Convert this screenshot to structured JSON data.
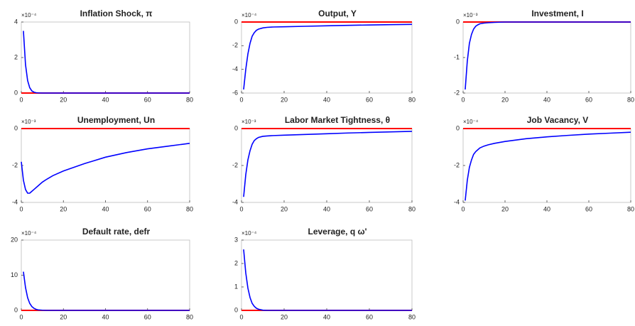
{
  "chart_data": [
    {
      "type": "line",
      "title": "Inflation Shock, π",
      "exponent_label": "×10⁻⁴",
      "x": [
        1,
        2,
        3,
        4,
        5,
        6,
        7,
        8,
        10,
        12,
        15,
        20,
        30,
        40,
        50,
        60,
        70,
        80
      ],
      "series": [
        {
          "color": "#0000ff",
          "values": [
            3.5,
            1.6,
            0.7,
            0.3,
            0.12,
            0.05,
            0.02,
            0.01,
            0,
            0,
            0,
            0,
            0,
            0,
            0,
            0,
            0,
            0
          ]
        }
      ],
      "xlim": [
        0,
        80
      ],
      "xticks": [
        0,
        20,
        40,
        60,
        80
      ],
      "ylim": [
        0,
        4
      ],
      "yticks": [
        0,
        2,
        4
      ],
      "hline": 0,
      "hline_color": "#ff0000"
    },
    {
      "type": "line",
      "title": "Output, Y",
      "exponent_label": "×10⁻⁴",
      "x": [
        1,
        2,
        3,
        4,
        5,
        6,
        7,
        8,
        10,
        12,
        15,
        20,
        30,
        40,
        50,
        60,
        70,
        80
      ],
      "series": [
        {
          "color": "#0000ff",
          "values": [
            -5.7,
            -4.0,
            -2.7,
            -1.8,
            -1.2,
            -0.9,
            -0.7,
            -0.6,
            -0.5,
            -0.45,
            -0.42,
            -0.4,
            -0.36,
            -0.32,
            -0.28,
            -0.25,
            -0.22,
            -0.2
          ]
        }
      ],
      "xlim": [
        0,
        80
      ],
      "xticks": [
        0,
        20,
        40,
        60,
        80
      ],
      "ylim": [
        -6,
        0
      ],
      "yticks": [
        -6,
        -4,
        -2,
        0
      ],
      "hline": 0,
      "hline_color": "#ff0000"
    },
    {
      "type": "line",
      "title": "Investment, I",
      "exponent_label": "×10⁻³",
      "x": [
        1,
        2,
        3,
        4,
        5,
        6,
        7,
        8,
        10,
        12,
        15,
        20,
        30,
        40,
        50,
        60,
        70,
        80
      ],
      "series": [
        {
          "color": "#0000ff",
          "values": [
            -1.9,
            -1.1,
            -0.6,
            -0.35,
            -0.2,
            -0.12,
            -0.08,
            -0.05,
            -0.03,
            -0.02,
            -0.01,
            0,
            0,
            0,
            0,
            0,
            0,
            0
          ]
        }
      ],
      "xlim": [
        0,
        80
      ],
      "xticks": [
        0,
        20,
        40,
        60,
        80
      ],
      "ylim": [
        -2,
        0
      ],
      "yticks": [
        -2,
        -1,
        0
      ],
      "hline": 0,
      "hline_color": "#ff0000"
    },
    {
      "type": "line",
      "title": "Unemployment, Un",
      "exponent_label": "×10⁻³",
      "x": [
        0,
        1,
        2,
        3,
        4,
        5,
        6,
        8,
        10,
        12,
        15,
        20,
        30,
        40,
        50,
        60,
        70,
        80
      ],
      "series": [
        {
          "color": "#0000ff",
          "values": [
            -1.8,
            -2.8,
            -3.3,
            -3.5,
            -3.5,
            -3.4,
            -3.3,
            -3.1,
            -2.9,
            -2.75,
            -2.55,
            -2.3,
            -1.9,
            -1.55,
            -1.3,
            -1.1,
            -0.95,
            -0.8
          ]
        }
      ],
      "xlim": [
        0,
        80
      ],
      "xticks": [
        0,
        20,
        40,
        60,
        80
      ],
      "ylim": [
        -4,
        0
      ],
      "yticks": [
        -4,
        -2,
        0
      ],
      "hline": 0,
      "hline_color": "#ff0000"
    },
    {
      "type": "line",
      "title": "Labor Market Tightness, θ",
      "exponent_label": "×10⁻³",
      "x": [
        1,
        2,
        3,
        4,
        5,
        6,
        7,
        8,
        10,
        12,
        15,
        20,
        30,
        40,
        50,
        60,
        70,
        80
      ],
      "series": [
        {
          "color": "#0000ff",
          "values": [
            -3.7,
            -2.5,
            -1.7,
            -1.2,
            -0.85,
            -0.65,
            -0.55,
            -0.48,
            -0.42,
            -0.4,
            -0.38,
            -0.36,
            -0.32,
            -0.28,
            -0.24,
            -0.21,
            -0.18,
            -0.15
          ]
        }
      ],
      "xlim": [
        0,
        80
      ],
      "xticks": [
        0,
        20,
        40,
        60,
        80
      ],
      "ylim": [
        -4,
        0
      ],
      "yticks": [
        -4,
        -2,
        0
      ],
      "hline": 0,
      "hline_color": "#ff0000"
    },
    {
      "type": "line",
      "title": "Job Vacancy, V",
      "exponent_label": "×10⁻⁴",
      "x": [
        1,
        2,
        3,
        4,
        5,
        6,
        7,
        8,
        10,
        12,
        15,
        20,
        30,
        40,
        50,
        60,
        70,
        80
      ],
      "series": [
        {
          "color": "#0000ff",
          "values": [
            -3.9,
            -2.8,
            -2.1,
            -1.7,
            -1.4,
            -1.25,
            -1.15,
            -1.05,
            -0.95,
            -0.88,
            -0.8,
            -0.7,
            -0.55,
            -0.45,
            -0.37,
            -0.3,
            -0.25,
            -0.2
          ]
        }
      ],
      "xlim": [
        0,
        80
      ],
      "xticks": [
        0,
        20,
        40,
        60,
        80
      ],
      "ylim": [
        -4,
        0
      ],
      "yticks": [
        -4,
        -2,
        0
      ],
      "hline": 0,
      "hline_color": "#ff0000"
    },
    {
      "type": "line",
      "title": "Default rate, defr",
      "exponent_label": "×10⁻⁴",
      "x": [
        1,
        2,
        3,
        4,
        5,
        6,
        7,
        8,
        10,
        12,
        15,
        20,
        30,
        40,
        50,
        60,
        70,
        80
      ],
      "series": [
        {
          "color": "#0000ff",
          "values": [
            11,
            6.5,
            3.6,
            2,
            1.1,
            0.6,
            0.3,
            0.15,
            0.05,
            0,
            0,
            0,
            0,
            0,
            0,
            0,
            0,
            0
          ]
        }
      ],
      "xlim": [
        0,
        80
      ],
      "xticks": [
        0,
        20,
        40,
        60,
        80
      ],
      "ylim": [
        0,
        20
      ],
      "yticks": [
        0,
        10,
        20
      ],
      "hline": 0,
      "hline_color": "#ff0000"
    },
    {
      "type": "line",
      "title": "Leverage, q ω'",
      "exponent_label": "×10⁻⁴",
      "x": [
        1,
        2,
        3,
        4,
        5,
        6,
        7,
        8,
        10,
        12,
        15,
        20,
        30,
        40,
        50,
        60,
        70,
        80
      ],
      "series": [
        {
          "color": "#0000ff",
          "values": [
            2.6,
            1.6,
            0.95,
            0.55,
            0.3,
            0.17,
            0.09,
            0.05,
            0.01,
            0,
            0,
            0,
            0,
            0,
            0,
            0,
            0,
            0
          ]
        }
      ],
      "xlim": [
        0,
        80
      ],
      "xticks": [
        0,
        20,
        40,
        60,
        80
      ],
      "ylim": [
        0,
        3
      ],
      "yticks": [
        0,
        1,
        2,
        3
      ],
      "hline": 0,
      "hline_color": "#ff0000"
    }
  ]
}
